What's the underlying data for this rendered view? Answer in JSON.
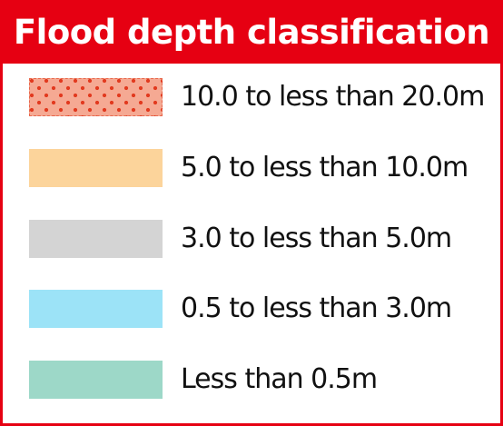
{
  "legend": {
    "title": "Flood depth classification",
    "classes": [
      {
        "label": "10.0 to less than 20.0m",
        "color": "#f5a993",
        "pattern": "red-dots"
      },
      {
        "label": "5.0 to less than 10.0m",
        "color": "#fcd49b",
        "pattern": "solid"
      },
      {
        "label": "3.0 to less than 5.0m",
        "color": "#d4d4d4",
        "pattern": "solid"
      },
      {
        "label": "0.5 to less than 3.0m",
        "color": "#9ce3f7",
        "pattern": "solid"
      },
      {
        "label": "Less than 0.5m",
        "color": "#9dd8c8",
        "pattern": "solid"
      }
    ]
  },
  "colors": {
    "accent": "#e60012",
    "header_text": "#ffffff",
    "dot": "#e23a1f"
  }
}
